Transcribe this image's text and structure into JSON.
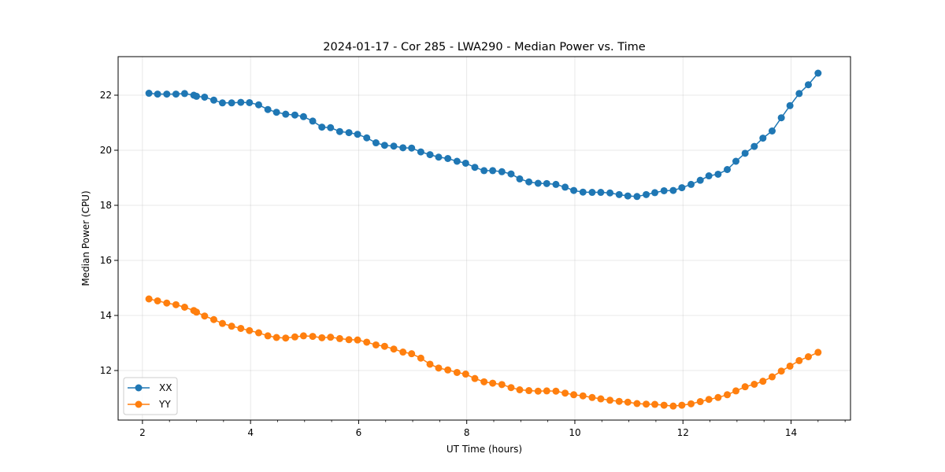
{
  "chart_data": {
    "type": "line",
    "title": "2024-01-17 - Cor 285 - LWA290 - Median Power vs. Time",
    "xlabel": "UT Time (hours)",
    "ylabel": "Median Power (CPU)",
    "xlim": [
      1.55,
      15.1
    ],
    "ylim": [
      10.2,
      23.4
    ],
    "xticks": [
      2,
      4,
      6,
      8,
      10,
      12,
      14
    ],
    "yticks": [
      12,
      14,
      16,
      18,
      20,
      22
    ],
    "grid": true,
    "legend_position": "lower-left",
    "series": [
      {
        "name": "XX",
        "color": "#1f77b4",
        "x": [
          2.12,
          2.28,
          2.45,
          2.62,
          2.78,
          2.95,
          3.0,
          3.15,
          3.32,
          3.48,
          3.65,
          3.82,
          3.98,
          4.15,
          4.32,
          4.48,
          4.65,
          4.82,
          4.98,
          5.15,
          5.32,
          5.48,
          5.65,
          5.82,
          5.98,
          6.15,
          6.32,
          6.48,
          6.65,
          6.82,
          6.98,
          7.15,
          7.32,
          7.48,
          7.65,
          7.82,
          7.98,
          8.15,
          8.32,
          8.48,
          8.65,
          8.82,
          8.98,
          9.15,
          9.32,
          9.48,
          9.65,
          9.82,
          9.98,
          10.15,
          10.32,
          10.48,
          10.65,
          10.82,
          10.98,
          11.15,
          11.32,
          11.48,
          11.65,
          11.82,
          11.98,
          12.15,
          12.32,
          12.48,
          12.65,
          12.82,
          12.98,
          13.15,
          13.32,
          13.48,
          13.65,
          13.82,
          13.98,
          14.15,
          14.32,
          14.5
        ],
        "values": [
          22.07,
          22.04,
          22.04,
          22.04,
          22.06,
          22.0,
          21.96,
          21.93,
          21.82,
          21.72,
          21.72,
          21.74,
          21.73,
          21.65,
          21.48,
          21.38,
          21.31,
          21.28,
          21.22,
          21.06,
          20.84,
          20.82,
          20.68,
          20.64,
          20.58,
          20.45,
          20.27,
          20.18,
          20.15,
          20.09,
          20.08,
          19.94,
          19.84,
          19.75,
          19.7,
          19.6,
          19.53,
          19.38,
          19.26,
          19.26,
          19.22,
          19.14,
          18.96,
          18.85,
          18.8,
          18.79,
          18.76,
          18.66,
          18.54,
          18.48,
          18.47,
          18.47,
          18.45,
          18.39,
          18.34,
          18.32,
          18.39,
          18.46,
          18.53,
          18.54,
          18.64,
          18.76,
          18.91,
          19.07,
          19.13,
          19.3,
          19.6,
          19.89,
          20.14,
          20.44,
          20.7,
          21.18,
          21.62,
          22.06,
          22.38,
          22.8
        ]
      },
      {
        "name": "YY",
        "color": "#ff7f0e",
        "x": [
          2.12,
          2.28,
          2.45,
          2.62,
          2.78,
          2.95,
          3.0,
          3.15,
          3.32,
          3.48,
          3.65,
          3.82,
          3.98,
          4.15,
          4.32,
          4.48,
          4.65,
          4.82,
          4.98,
          5.15,
          5.32,
          5.48,
          5.65,
          5.82,
          5.98,
          6.15,
          6.32,
          6.48,
          6.65,
          6.82,
          6.98,
          7.15,
          7.32,
          7.48,
          7.65,
          7.82,
          7.98,
          8.15,
          8.32,
          8.48,
          8.65,
          8.82,
          8.98,
          9.15,
          9.32,
          9.48,
          9.65,
          9.82,
          9.98,
          10.15,
          10.32,
          10.48,
          10.65,
          10.82,
          10.98,
          11.15,
          11.32,
          11.48,
          11.65,
          11.82,
          11.98,
          12.15,
          12.32,
          12.48,
          12.65,
          12.82,
          12.98,
          13.15,
          13.32,
          13.48,
          13.65,
          13.82,
          13.98,
          14.15,
          14.32,
          14.5
        ],
        "values": [
          14.6,
          14.53,
          14.45,
          14.39,
          14.3,
          14.18,
          14.12,
          13.98,
          13.85,
          13.71,
          13.61,
          13.53,
          13.45,
          13.37,
          13.26,
          13.2,
          13.18,
          13.22,
          13.26,
          13.24,
          13.19,
          13.21,
          13.16,
          13.12,
          13.11,
          13.03,
          12.93,
          12.88,
          12.78,
          12.67,
          12.61,
          12.45,
          12.23,
          12.09,
          12.02,
          11.93,
          11.87,
          11.71,
          11.59,
          11.54,
          11.49,
          11.38,
          11.3,
          11.27,
          11.25,
          11.26,
          11.25,
          11.18,
          11.12,
          11.08,
          11.02,
          10.97,
          10.92,
          10.88,
          10.85,
          10.8,
          10.78,
          10.77,
          10.74,
          10.71,
          10.74,
          10.79,
          10.87,
          10.95,
          11.02,
          11.12,
          11.26,
          11.41,
          11.5,
          11.61,
          11.77,
          11.98,
          12.16,
          12.36,
          12.5,
          12.66
        ]
      }
    ]
  }
}
